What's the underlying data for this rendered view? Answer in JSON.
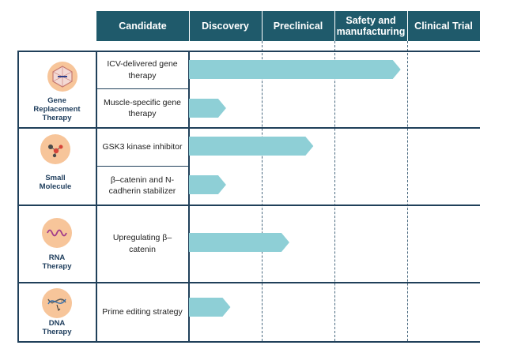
{
  "header": {
    "candidate": "Candidate",
    "discovery": "Discovery",
    "preclinical": "Preclinical",
    "safety_line1": "Safety and",
    "safety_line2": "manufacturing",
    "clinical": "Clinical Trial"
  },
  "colors": {
    "header": "#1f5a6b",
    "arrow": "#8ecfd6",
    "icon_bg": "#f7c59a"
  },
  "stages": [
    "Discovery",
    "Preclinical",
    "Safety and manufacturing",
    "Clinical Trial"
  ],
  "groups": [
    {
      "name": [
        "Gene",
        "Replacement",
        "Therapy"
      ],
      "icon": "virus-capsid-icon",
      "candidates": [
        {
          "lines": [
            "ICV-delivered gene",
            "therapy"
          ],
          "progress": 0.97
        },
        {
          "lines": [
            "Muscle-specific gene",
            "therapy"
          ],
          "progress": 0.17
        }
      ]
    },
    {
      "name": [
        "Small",
        "Molecule"
      ],
      "icon": "molecule-icon",
      "candidates": [
        {
          "lines": [
            "GSK3 kinase inhibitor"
          ],
          "progress": 0.57
        },
        {
          "lines": [
            "β–catenin and N-",
            "cadherin stabilizer"
          ],
          "progress": 0.17
        }
      ]
    },
    {
      "name": [
        "RNA",
        "Therapy"
      ],
      "icon": "rna-wave-icon",
      "candidates": [
        {
          "lines": [
            "Upregulating β–",
            "catenin"
          ],
          "progress": 0.46
        }
      ]
    },
    {
      "name": [
        "DNA",
        "Therapy"
      ],
      "icon": "dna-helix-icon",
      "candidates": [
        {
          "lines": [
            "Prime editing strategy"
          ],
          "progress": 0.19
        }
      ]
    }
  ]
}
